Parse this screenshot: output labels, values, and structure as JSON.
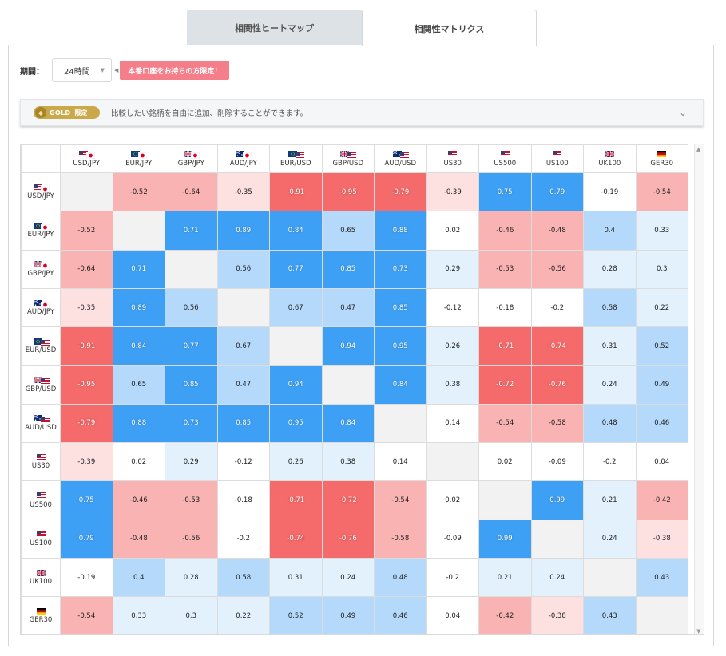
{
  "tabs": [
    {
      "label": "相関性ヒートマップ",
      "active": false
    },
    {
      "label": "相関性マトリクス",
      "active": true
    }
  ],
  "period": {
    "label": "期間：",
    "selected": "24時間",
    "promo": "本番口座をお持ちの方限定！"
  },
  "gold_bar": {
    "badge_main": "GOLD",
    "badge_sub": "限定",
    "description": "比較したい銘柄を自由に追加、削除することができます。"
  },
  "matrix": {
    "symbols": [
      "USD/JPY",
      "EUR/JPY",
      "GBP/JPY",
      "AUD/JPY",
      "EUR/USD",
      "GBP/USD",
      "AUD/USD",
      "US30",
      "US500",
      "US100",
      "UK100",
      "GER30"
    ],
    "flags": [
      [
        "us",
        "jp"
      ],
      [
        "eu",
        "jp"
      ],
      [
        "gb",
        "jp"
      ],
      [
        "au",
        "jp"
      ],
      [
        "eu",
        "us"
      ],
      [
        "gb",
        "us"
      ],
      [
        "au",
        "us"
      ],
      [
        "us"
      ],
      [
        "us"
      ],
      [
        "us"
      ],
      [
        "gb"
      ],
      [
        "de"
      ]
    ],
    "values": [
      [
        null,
        -0.52,
        -0.64,
        -0.35,
        -0.91,
        -0.95,
        -0.79,
        -0.39,
        0.75,
        0.79,
        -0.19,
        -0.54
      ],
      [
        -0.52,
        null,
        0.71,
        0.89,
        0.84,
        0.65,
        0.88,
        0.02,
        -0.46,
        -0.48,
        0.4,
        0.33
      ],
      [
        -0.64,
        0.71,
        null,
        0.56,
        0.77,
        0.85,
        0.73,
        0.29,
        -0.53,
        -0.56,
        0.28,
        0.3
      ],
      [
        -0.35,
        0.89,
        0.56,
        null,
        0.67,
        0.47,
        0.85,
        -0.12,
        -0.18,
        -0.2,
        0.58,
        0.22
      ],
      [
        -0.91,
        0.84,
        0.77,
        0.67,
        null,
        0.94,
        0.95,
        0.26,
        -0.71,
        -0.74,
        0.31,
        0.52
      ],
      [
        -0.95,
        0.65,
        0.85,
        0.47,
        0.94,
        null,
        0.84,
        0.38,
        -0.72,
        -0.76,
        0.24,
        0.49
      ],
      [
        -0.79,
        0.88,
        0.73,
        0.85,
        0.95,
        0.84,
        null,
        0.14,
        -0.54,
        -0.58,
        0.48,
        0.46
      ],
      [
        -0.39,
        0.02,
        0.29,
        -0.12,
        0.26,
        0.38,
        0.14,
        null,
        0.02,
        -0.09,
        -0.2,
        0.04
      ],
      [
        0.75,
        -0.46,
        -0.53,
        -0.18,
        -0.71,
        -0.72,
        -0.54,
        0.02,
        null,
        0.99,
        0.21,
        -0.42
      ],
      [
        0.79,
        -0.48,
        -0.56,
        -0.2,
        -0.74,
        -0.76,
        -0.58,
        -0.09,
        0.99,
        null,
        0.24,
        -0.38
      ],
      [
        -0.19,
        0.4,
        0.28,
        0.58,
        0.31,
        0.24,
        0.48,
        -0.2,
        0.21,
        0.24,
        null,
        0.43
      ],
      [
        -0.54,
        0.33,
        0.3,
        0.22,
        0.52,
        0.49,
        0.46,
        0.04,
        -0.42,
        -0.38,
        0.43,
        null
      ]
    ],
    "colors": {
      "pos_strong": "#3da0f5",
      "pos_mid": "#b5d9fb",
      "pos_weak": "#e3f1fd",
      "neg_strong": "#f56a6a",
      "neg_mid": "#f9b3b3",
      "neg_weak": "#fde0e0",
      "neutral": "#ffffff",
      "diagonal": "#f2f2f2"
    }
  }
}
